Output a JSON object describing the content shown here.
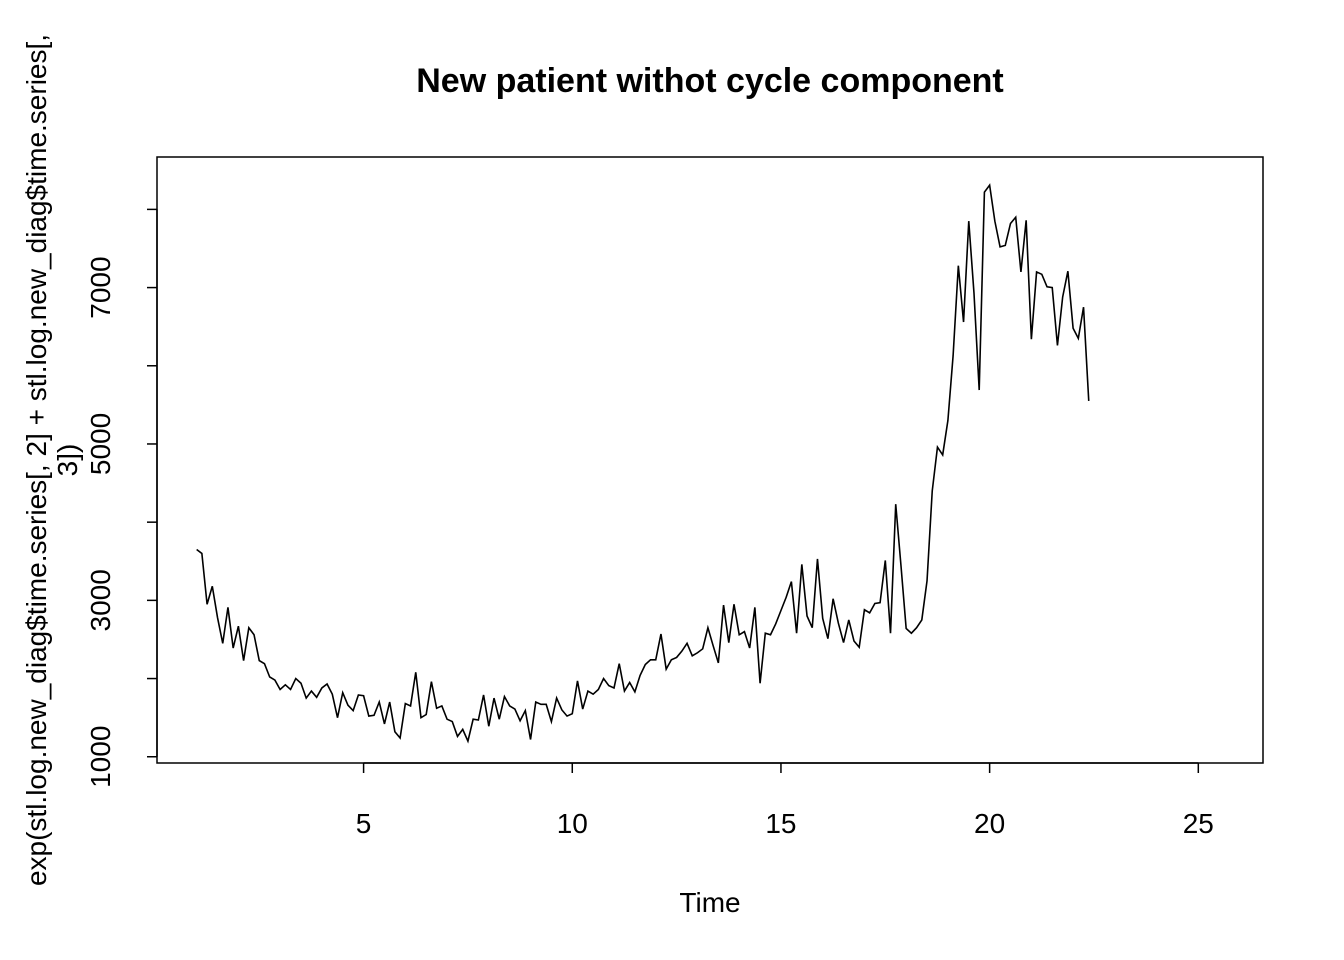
{
  "chart_data": {
    "type": "line",
    "title": "New patient withot cycle component",
    "xlabel": "Time",
    "ylabel_lines": [
      "exp(stl.log.new_diag$time.series[, 2] + stl.log.new_diag$time.series[,",
      "3])"
    ],
    "xlim": [
      0.05,
      26.55
    ],
    "ylim": [
      920,
      8670
    ],
    "x_ticks": [
      5,
      10,
      15,
      20,
      25
    ],
    "x_tick_labels": [
      "5",
      "10",
      "15",
      "20",
      "25"
    ],
    "y_ticks": [
      1000,
      2000,
      3000,
      4000,
      5000,
      6000,
      7000,
      8000
    ],
    "y_tick_labels": {
      "1000": "1000",
      "3000": "3000",
      "5000": "5000",
      "7000": "7000"
    },
    "grid": false,
    "legend": "none",
    "line_color": "#000000",
    "series": [
      {
        "x_start": 1.0,
        "x_step": 0.125,
        "values": [
          3650,
          3600,
          2950,
          3180,
          2780,
          2450,
          2910,
          2390,
          2670,
          2230,
          2650,
          2560,
          2230,
          2190,
          2020,
          1980,
          1860,
          1920,
          1860,
          2000,
          1940,
          1750,
          1840,
          1760,
          1880,
          1930,
          1800,
          1500,
          1820,
          1660,
          1590,
          1790,
          1780,
          1520,
          1530,
          1700,
          1420,
          1700,
          1320,
          1240,
          1680,
          1650,
          2080,
          1500,
          1540,
          1960,
          1620,
          1650,
          1480,
          1450,
          1260,
          1350,
          1200,
          1480,
          1470,
          1790,
          1390,
          1750,
          1480,
          1770,
          1650,
          1610,
          1460,
          1590,
          1220,
          1700,
          1670,
          1670,
          1450,
          1750,
          1600,
          1520,
          1550,
          1970,
          1610,
          1840,
          1800,
          1860,
          2000,
          1910,
          1880,
          2190,
          1840,
          1950,
          1830,
          2040,
          2180,
          2240,
          2240,
          2570,
          2120,
          2240,
          2270,
          2350,
          2450,
          2290,
          2330,
          2380,
          2650,
          2420,
          2200,
          2940,
          2460,
          2950,
          2560,
          2600,
          2390,
          2910,
          1940,
          2580,
          2560,
          2700,
          2870,
          3040,
          3240,
          2580,
          3460,
          2800,
          2650,
          3530,
          2770,
          2510,
          3020,
          2710,
          2460,
          2750,
          2480,
          2400,
          2880,
          2840,
          2960,
          2970,
          3510,
          2580,
          4230,
          3450,
          2640,
          2580,
          2650,
          2750,
          3250,
          4400,
          4960,
          4860,
          5300,
          6130,
          7280,
          6560,
          7850,
          6930,
          5690,
          8220,
          8310,
          7850,
          7520,
          7540,
          7820,
          7900,
          7200,
          7860,
          6340,
          7200,
          7170,
          7010,
          7000,
          6260,
          6880,
          7210,
          6480,
          6350,
          6750,
          5550
        ]
      }
    ]
  }
}
